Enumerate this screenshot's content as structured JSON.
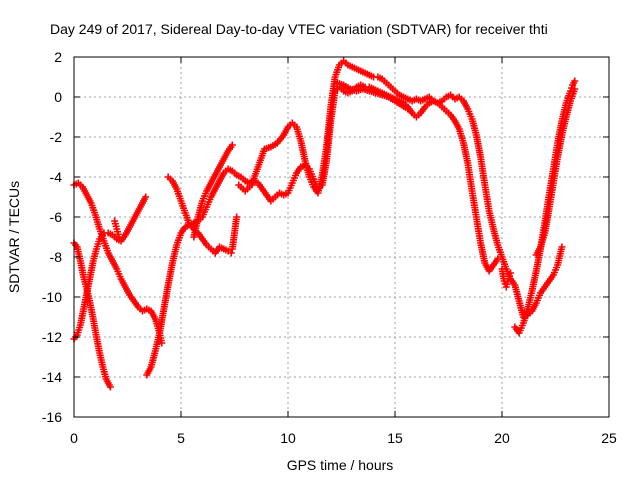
{
  "chart_data": {
    "type": "scatter",
    "title": "Day 249 of 2017, Sidereal Day-to-day VTEC variation (SDTVAR) for receiver thti",
    "xlabel": "GPS time / hours",
    "ylabel": "SDTVAR / TECUs",
    "xlim": [
      0,
      25
    ],
    "ylim": [
      -16,
      2
    ],
    "xticks": [
      "0",
      "5",
      "10",
      "15",
      "20",
      "25"
    ],
    "yticks": [
      "2",
      "0",
      "-2",
      "-4",
      "-6",
      "-8",
      "-10",
      "-12",
      "-14",
      "-16"
    ],
    "xtick_values": [
      0,
      5,
      10,
      15,
      20,
      25
    ],
    "ytick_values": [
      2,
      0,
      -2,
      -4,
      -6,
      -8,
      -10,
      -12,
      -14,
      -16
    ],
    "grid": true,
    "legend": "none",
    "marker": "plus",
    "color": "#ff0000",
    "series": [
      {
        "points": [
          [
            0.0,
            -4.4
          ],
          [
            0.2,
            -4.3
          ],
          [
            0.4,
            -4.5
          ],
          [
            0.6,
            -4.9
          ],
          [
            0.8,
            -5.3
          ],
          [
            1.0,
            -5.9
          ],
          [
            1.2,
            -6.6
          ],
          [
            1.4,
            -7.2
          ],
          [
            1.6,
            -7.8
          ],
          [
            1.8,
            -8.2
          ],
          [
            2.0,
            -8.6
          ],
          [
            2.2,
            -9.1
          ],
          [
            2.4,
            -9.5
          ],
          [
            2.6,
            -9.9
          ],
          [
            2.8,
            -10.2
          ],
          [
            3.0,
            -10.5
          ],
          [
            3.2,
            -10.7
          ],
          [
            3.4,
            -10.6
          ],
          [
            3.6,
            -10.7
          ],
          [
            3.8,
            -11.1
          ],
          [
            4.0,
            -11.8
          ],
          [
            4.1,
            -12.3
          ]
        ]
      },
      {
        "points": [
          [
            0.0,
            -7.3
          ],
          [
            0.15,
            -7.5
          ],
          [
            0.3,
            -8.2
          ],
          [
            0.45,
            -9.0
          ],
          [
            0.6,
            -9.6
          ],
          [
            0.75,
            -10.3
          ],
          [
            0.9,
            -11.1
          ],
          [
            1.05,
            -12.0
          ],
          [
            1.2,
            -12.8
          ],
          [
            1.35,
            -13.5
          ],
          [
            1.5,
            -14.1
          ],
          [
            1.7,
            -14.5
          ]
        ]
      },
      {
        "points": [
          [
            0.0,
            -12.1
          ],
          [
            0.15,
            -11.9
          ],
          [
            0.3,
            -11.4
          ],
          [
            0.45,
            -10.6
          ],
          [
            0.6,
            -9.8
          ],
          [
            0.75,
            -9.0
          ],
          [
            0.9,
            -8.2
          ],
          [
            1.05,
            -7.6
          ],
          [
            1.2,
            -7.1
          ],
          [
            1.4,
            -6.8
          ],
          [
            1.6,
            -6.8
          ],
          [
            1.8,
            -6.9
          ],
          [
            2.0,
            -7.1
          ],
          [
            2.2,
            -7.2
          ],
          [
            2.4,
            -6.9
          ],
          [
            2.6,
            -6.5
          ],
          [
            2.8,
            -6.1
          ],
          [
            3.0,
            -5.7
          ],
          [
            3.2,
            -5.3
          ],
          [
            3.35,
            -5.0
          ]
        ]
      },
      {
        "points": [
          [
            1.9,
            -6.2
          ],
          [
            2.0,
            -6.6
          ],
          [
            2.1,
            -7.0
          ]
        ]
      },
      {
        "points": [
          [
            3.4,
            -13.9
          ],
          [
            3.6,
            -13.5
          ],
          [
            3.8,
            -12.7
          ],
          [
            4.0,
            -11.8
          ],
          [
            4.2,
            -10.6
          ],
          [
            4.4,
            -9.4
          ],
          [
            4.6,
            -8.3
          ],
          [
            4.8,
            -7.4
          ],
          [
            5.0,
            -6.8
          ],
          [
            5.2,
            -6.5
          ],
          [
            5.4,
            -6.4
          ],
          [
            5.6,
            -6.3
          ],
          [
            5.8,
            -6.2
          ],
          [
            6.0,
            -6.0
          ],
          [
            6.2,
            -5.5
          ],
          [
            6.4,
            -5.0
          ],
          [
            6.6,
            -4.6
          ],
          [
            6.8,
            -4.2
          ],
          [
            7.0,
            -3.8
          ],
          [
            7.2,
            -3.6
          ],
          [
            7.4,
            -3.7
          ],
          [
            7.6,
            -3.9
          ],
          [
            7.8,
            -4.0
          ],
          [
            8.0,
            -4.2
          ],
          [
            8.2,
            -4.3
          ],
          [
            8.4,
            -4.2
          ],
          [
            8.6,
            -4.3
          ],
          [
            8.8,
            -4.6
          ],
          [
            9.0,
            -4.9
          ],
          [
            9.2,
            -5.2
          ],
          [
            9.4,
            -5.0
          ],
          [
            9.6,
            -4.8
          ],
          [
            9.8,
            -4.9
          ],
          [
            10.0,
            -4.8
          ],
          [
            10.2,
            -4.3
          ],
          [
            10.4,
            -3.8
          ],
          [
            10.6,
            -3.5
          ],
          [
            10.8,
            -3.4
          ],
          [
            11.0,
            -3.6
          ],
          [
            11.2,
            -4.1
          ],
          [
            11.4,
            -4.6
          ],
          [
            11.6,
            -4.4
          ],
          [
            11.8,
            -3.2
          ],
          [
            12.0,
            -1.2
          ],
          [
            12.2,
            0.3
          ],
          [
            12.4,
            0.5
          ],
          [
            12.6,
            0.3
          ],
          [
            12.8,
            0.2
          ],
          [
            13.0,
            0.3
          ],
          [
            13.2,
            0.5
          ],
          [
            13.4,
            0.6
          ],
          [
            13.6,
            0.5
          ],
          [
            13.8,
            0.5
          ],
          [
            14.0,
            0.4
          ],
          [
            14.2,
            0.3
          ],
          [
            14.4,
            0.2
          ],
          [
            14.6,
            0.1
          ],
          [
            14.8,
            0.0
          ],
          [
            15.0,
            -0.1
          ],
          [
            15.2,
            -0.2
          ],
          [
            15.4,
            -0.3
          ],
          [
            15.6,
            -0.5
          ],
          [
            15.8,
            -0.8
          ],
          [
            16.0,
            -1.0
          ],
          [
            16.2,
            -0.8
          ],
          [
            16.4,
            -0.5
          ],
          [
            16.6,
            -0.3
          ],
          [
            16.8,
            -0.2
          ],
          [
            17.0,
            -0.3
          ],
          [
            17.2,
            -0.5
          ],
          [
            17.4,
            -0.7
          ],
          [
            17.6,
            -0.9
          ],
          [
            17.8,
            -1.2
          ],
          [
            18.0,
            -1.6
          ],
          [
            18.2,
            -2.3
          ],
          [
            18.4,
            -3.3
          ],
          [
            18.6,
            -4.7
          ],
          [
            18.8,
            -6.0
          ],
          [
            19.0,
            -7.3
          ],
          [
            19.2,
            -8.3
          ],
          [
            19.4,
            -8.7
          ],
          [
            19.6,
            -8.4
          ],
          [
            19.8,
            -8.1
          ]
        ]
      },
      {
        "points": [
          [
            4.4,
            -4.0
          ],
          [
            4.6,
            -4.2
          ],
          [
            4.8,
            -4.6
          ],
          [
            5.0,
            -5.2
          ],
          [
            5.2,
            -5.8
          ],
          [
            5.4,
            -6.4
          ],
          [
            5.6,
            -6.6
          ],
          [
            5.8,
            -6.8
          ],
          [
            6.0,
            -7.1
          ],
          [
            6.2,
            -7.4
          ],
          [
            6.4,
            -7.6
          ],
          [
            6.6,
            -7.8
          ],
          [
            6.8,
            -7.5
          ],
          [
            7.0,
            -7.6
          ],
          [
            7.2,
            -7.7
          ],
          [
            7.35,
            -7.8
          ]
        ]
      },
      {
        "points": [
          [
            5.6,
            -7.0
          ],
          [
            5.8,
            -6.0
          ],
          [
            6.0,
            -5.2
          ],
          [
            6.2,
            -4.7
          ],
          [
            6.4,
            -4.3
          ],
          [
            6.6,
            -3.9
          ],
          [
            6.8,
            -3.5
          ],
          [
            7.0,
            -3.1
          ],
          [
            7.2,
            -2.7
          ],
          [
            7.4,
            -2.4
          ]
        ]
      },
      {
        "points": [
          [
            7.4,
            -7.6
          ],
          [
            7.5,
            -6.8
          ],
          [
            7.6,
            -6.0
          ]
        ]
      },
      {
        "points": [
          [
            7.7,
            -4.4
          ],
          [
            8.0,
            -4.7
          ],
          [
            8.3,
            -4.4
          ],
          [
            8.6,
            -3.5
          ],
          [
            8.9,
            -2.6
          ],
          [
            9.2,
            -2.5
          ],
          [
            9.5,
            -2.3
          ],
          [
            9.8,
            -1.9
          ],
          [
            10.0,
            -1.5
          ],
          [
            10.2,
            -1.3
          ],
          [
            10.4,
            -1.5
          ],
          [
            10.6,
            -2.2
          ],
          [
            10.8,
            -3.2
          ],
          [
            11.0,
            -4.0
          ],
          [
            11.2,
            -4.5
          ],
          [
            11.4,
            -4.8
          ],
          [
            11.6,
            -3.9
          ],
          [
            11.8,
            -2.5
          ],
          [
            12.0,
            -0.5
          ],
          [
            12.2,
            1.0
          ],
          [
            12.4,
            1.6
          ],
          [
            12.6,
            1.8
          ],
          [
            12.8,
            1.6
          ],
          [
            13.0,
            1.5
          ],
          [
            13.2,
            1.4
          ],
          [
            13.4,
            1.3
          ],
          [
            13.6,
            1.2
          ],
          [
            13.8,
            1.1
          ],
          [
            14.0,
            1.0
          ],
          [
            14.2,
            1.0
          ],
          [
            14.4,
            0.9
          ],
          [
            14.6,
            0.7
          ],
          [
            14.8,
            0.5
          ],
          [
            15.0,
            0.3
          ],
          [
            15.2,
            0.1
          ],
          [
            15.4,
            0.0
          ],
          [
            15.6,
            -0.1
          ],
          [
            15.8,
            -0.2
          ],
          [
            16.0,
            -0.1
          ],
          [
            16.2,
            -0.2
          ],
          [
            16.4,
            -0.1
          ],
          [
            16.6,
            0.0
          ],
          [
            16.8,
            -0.2
          ],
          [
            17.0,
            -0.3
          ],
          [
            17.2,
            -0.2
          ],
          [
            17.4,
            0.0
          ],
          [
            17.6,
            0.1
          ],
          [
            17.8,
            -0.1
          ],
          [
            18.0,
            0.0
          ],
          [
            18.2,
            -0.2
          ],
          [
            18.4,
            -0.6
          ],
          [
            18.6,
            -1.1
          ],
          [
            18.8,
            -1.9
          ],
          [
            19.0,
            -3.0
          ],
          [
            19.2,
            -4.4
          ],
          [
            19.4,
            -5.7
          ],
          [
            19.6,
            -6.6
          ],
          [
            19.8,
            -7.4
          ],
          [
            20.0,
            -8.0
          ],
          [
            20.2,
            -8.6
          ],
          [
            20.4,
            -9.1
          ],
          [
            20.6,
            -9.4
          ],
          [
            20.8,
            -10.2
          ],
          [
            21.0,
            -11.0
          ],
          [
            21.2,
            -10.9
          ],
          [
            21.4,
            -10.7
          ],
          [
            21.6,
            -10.3
          ],
          [
            21.8,
            -9.8
          ],
          [
            22.0,
            -9.5
          ],
          [
            22.2,
            -9.2
          ],
          [
            22.4,
            -8.9
          ],
          [
            22.6,
            -8.4
          ],
          [
            22.8,
            -7.5
          ]
        ]
      },
      {
        "points": [
          [
            12.3,
            0.7
          ],
          [
            12.6,
            0.6
          ],
          [
            12.9,
            0.4
          ],
          [
            13.2,
            0.3
          ],
          [
            13.5,
            0.4
          ],
          [
            13.8,
            0.3
          ],
          [
            14.1,
            0.2
          ],
          [
            14.4,
            0.1
          ],
          [
            14.7,
            0.0
          ],
          [
            15.0,
            -0.2
          ],
          [
            15.3,
            -0.4
          ],
          [
            15.6,
            -0.6
          ]
        ]
      },
      {
        "points": [
          [
            20.0,
            -8.6
          ],
          [
            20.1,
            -9.2
          ],
          [
            20.2,
            -9.5
          ],
          [
            20.3,
            -9.1
          ],
          [
            20.4,
            -8.8
          ]
        ]
      },
      {
        "points": [
          [
            20.6,
            -11.5
          ],
          [
            20.8,
            -11.8
          ],
          [
            21.0,
            -11.3
          ],
          [
            21.2,
            -10.6
          ],
          [
            21.4,
            -9.7
          ],
          [
            21.6,
            -8.7
          ],
          [
            21.8,
            -7.6
          ],
          [
            22.0,
            -6.3
          ],
          [
            22.2,
            -4.9
          ],
          [
            22.4,
            -3.6
          ],
          [
            22.6,
            -2.3
          ],
          [
            22.8,
            -1.2
          ],
          [
            23.0,
            -0.3
          ],
          [
            23.2,
            0.3
          ],
          [
            23.3,
            0.6
          ],
          [
            23.4,
            0.8
          ]
        ]
      },
      {
        "points": [
          [
            21.6,
            -7.9
          ],
          [
            21.8,
            -7.5
          ],
          [
            22.0,
            -6.8
          ],
          [
            22.2,
            -5.6
          ],
          [
            22.4,
            -4.3
          ],
          [
            22.6,
            -3.0
          ],
          [
            22.8,
            -1.9
          ],
          [
            23.0,
            -1.0
          ],
          [
            23.2,
            -0.2
          ],
          [
            23.4,
            0.4
          ]
        ]
      }
    ]
  }
}
